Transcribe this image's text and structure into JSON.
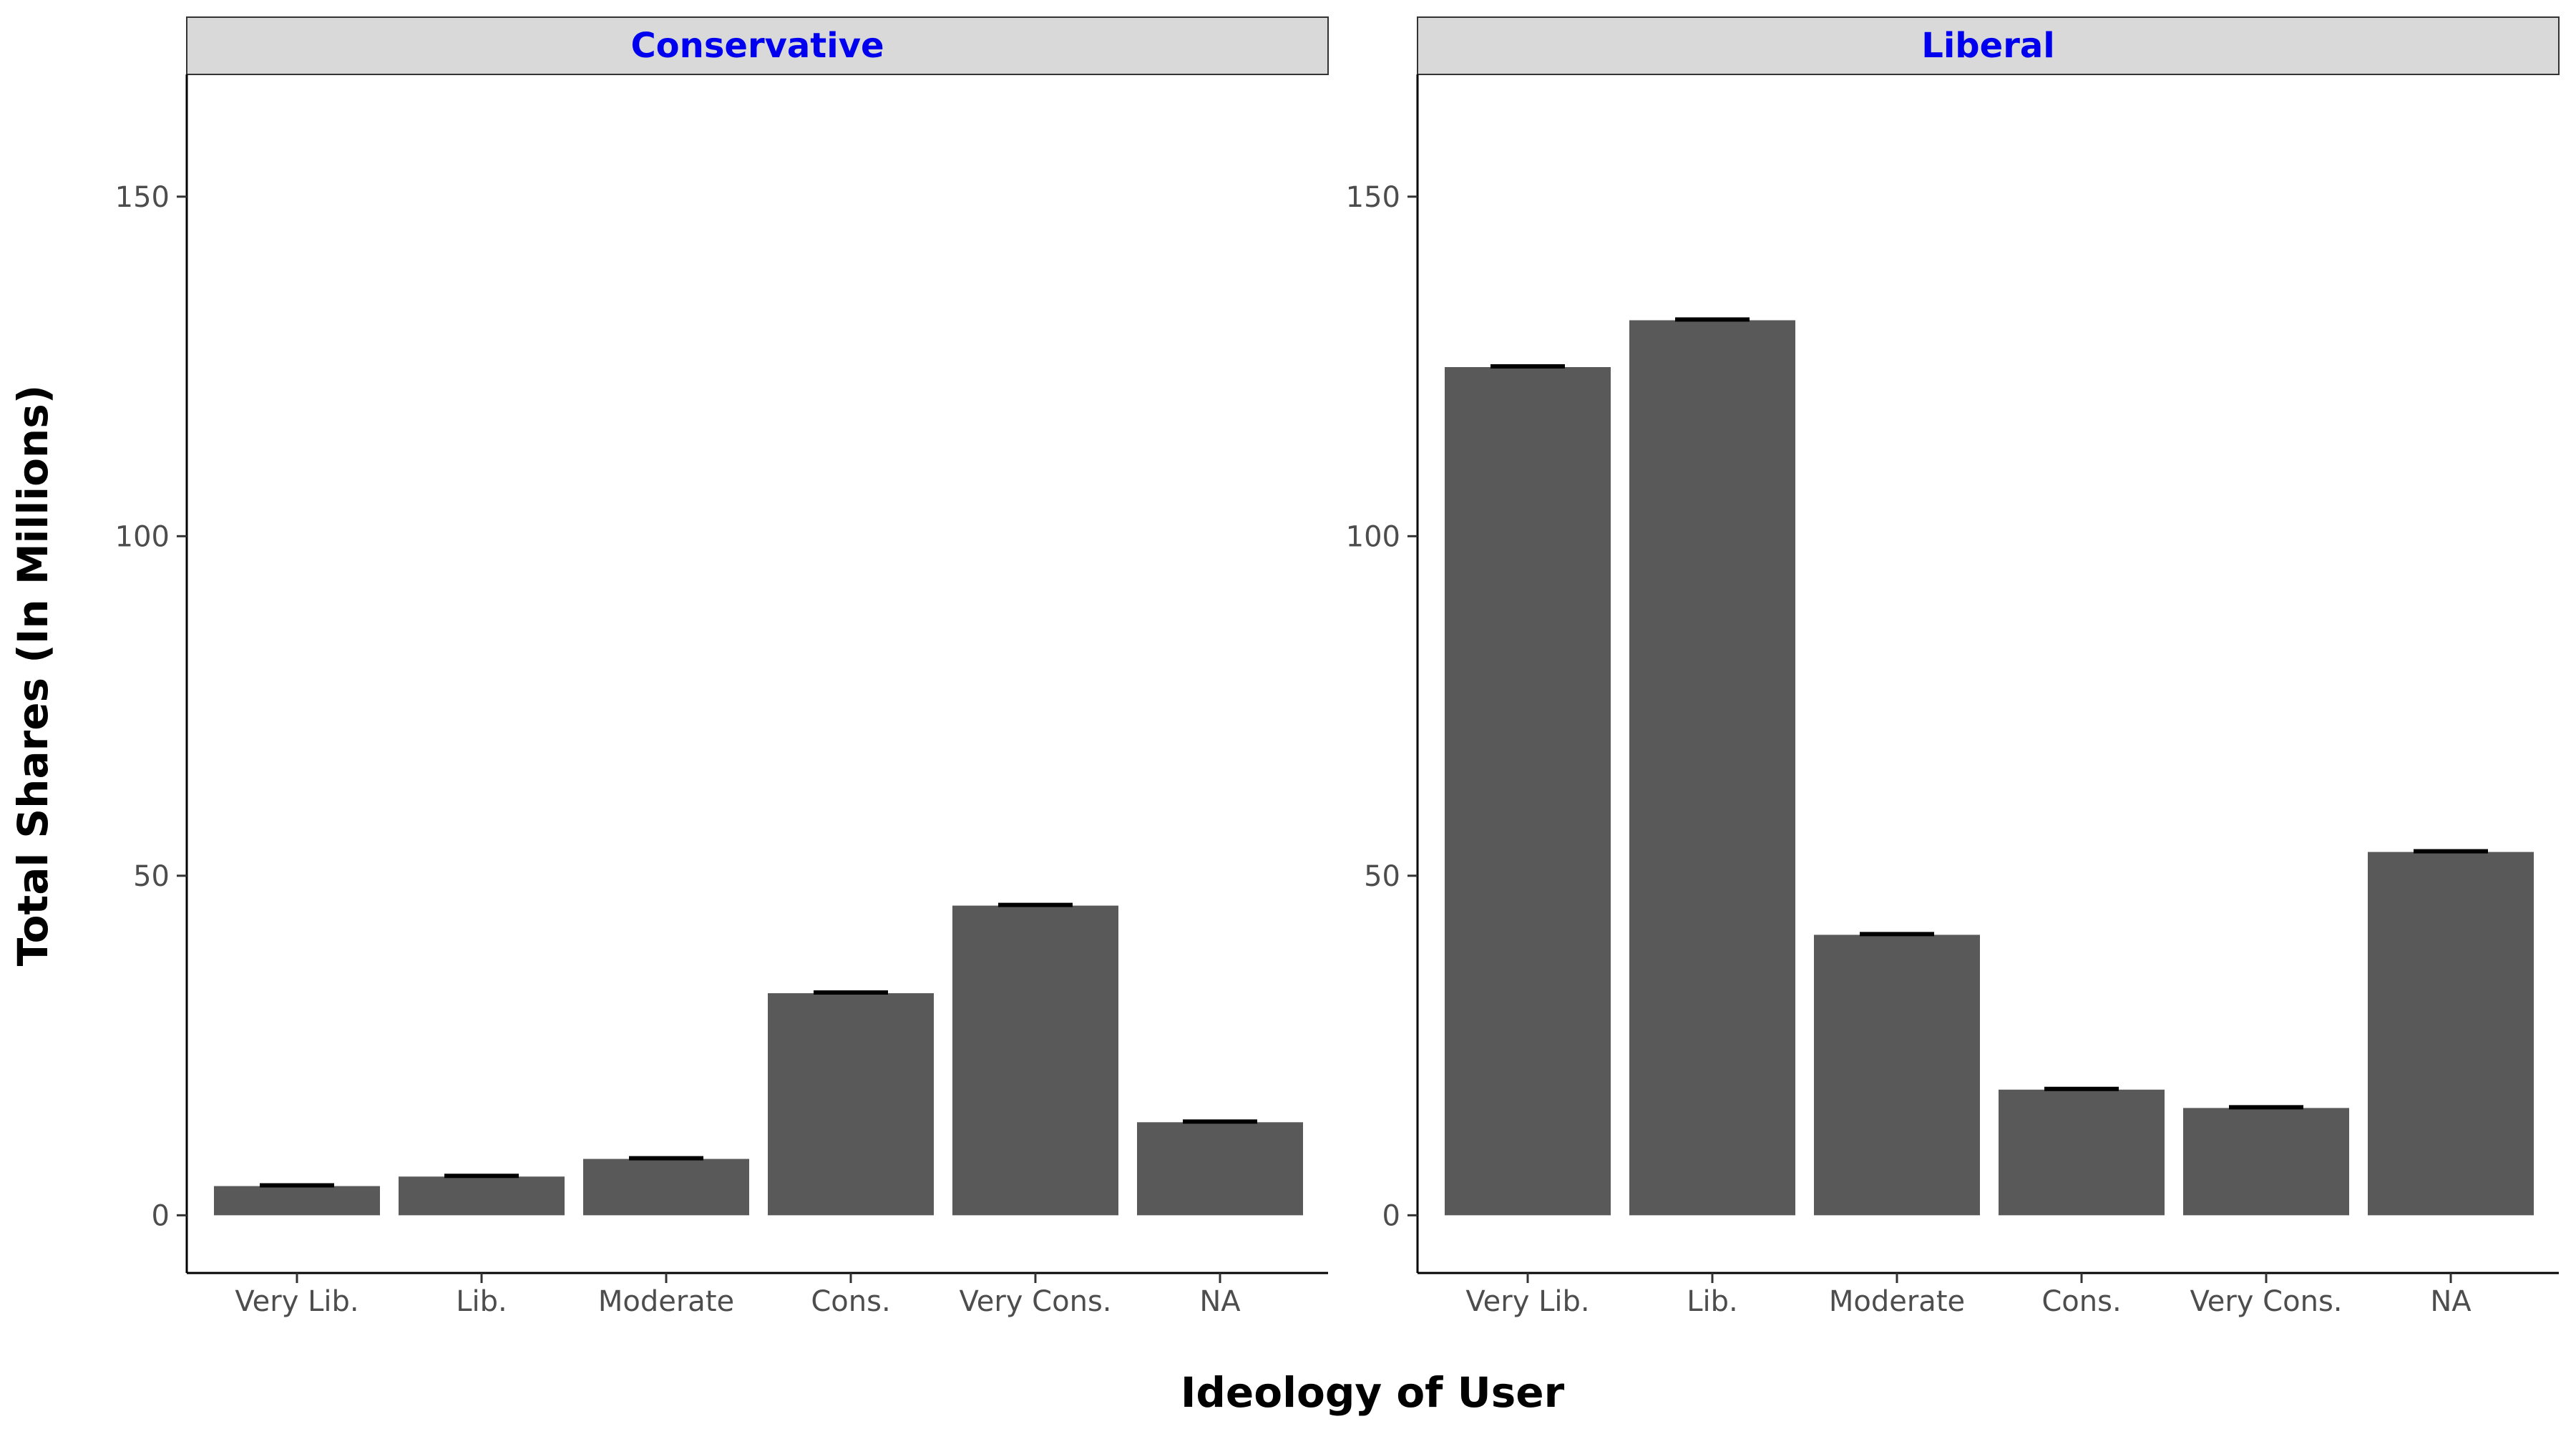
{
  "chart_data": {
    "type": "bar",
    "xlabel": "Ideology of User",
    "ylabel": "Total Shares (In Millions)",
    "ylim": [
      -8.5,
      168
    ],
    "yticks": [
      0,
      50,
      100,
      150
    ],
    "grid": false,
    "strip_label_color": "#0000ee",
    "strip_background": "#d9d9d9",
    "bar_color": "#595959",
    "errorbar_color": "#000000",
    "categories": [
      "Very Lib.",
      "Lib.",
      "Moderate",
      "Cons.",
      "Very Cons.",
      "NA"
    ],
    "panels": [
      {
        "name": "Conservative",
        "values": [
          4.3,
          5.7,
          8.3,
          32.7,
          45.6,
          13.7
        ]
      },
      {
        "name": "Liberal",
        "values": [
          124.9,
          131.8,
          41.3,
          18.5,
          15.8,
          53.5
        ]
      }
    ]
  }
}
